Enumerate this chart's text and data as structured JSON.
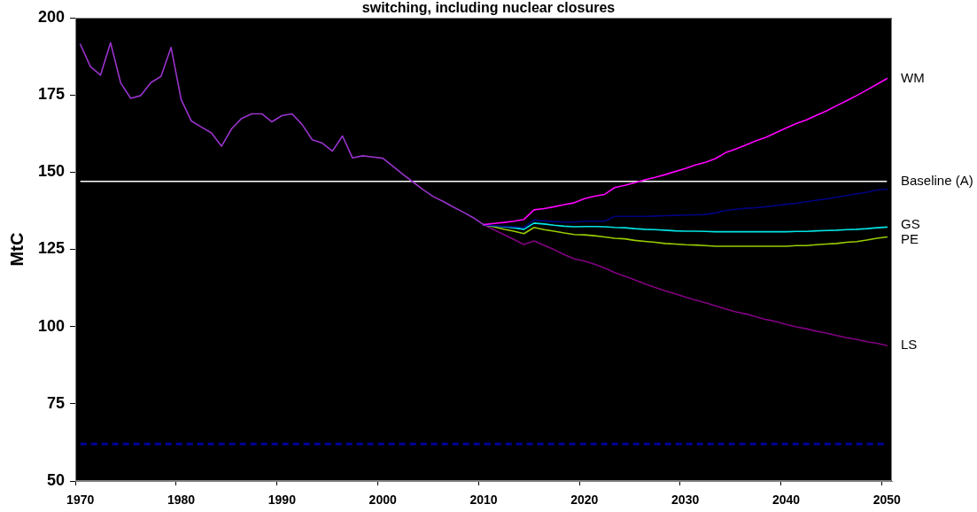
{
  "chart_data": {
    "type": "line",
    "title": "switching, including nuclear closures",
    "ylabel": "MtC",
    "categories": [
      "1970",
      null,
      null,
      null,
      null,
      null,
      null,
      null,
      null,
      null,
      "1980",
      null,
      null,
      null,
      null,
      null,
      null,
      null,
      null,
      null,
      "1990",
      null,
      null,
      null,
      null,
      null,
      null,
      null,
      null,
      null,
      "2000",
      null,
      null,
      null,
      null,
      null,
      null,
      null,
      null,
      null,
      "2010",
      null,
      null,
      null,
      null,
      null,
      null,
      null,
      null,
      null,
      "2020",
      null,
      null,
      null,
      null,
      null,
      null,
      null,
      null,
      null,
      "2030",
      null,
      null,
      null,
      null,
      null,
      null,
      null,
      null,
      null,
      "2040",
      null,
      null,
      null,
      null,
      null,
      null,
      null,
      null,
      null,
      "2050"
    ],
    "ylim": [
      50,
      200
    ],
    "yticks": [
      50,
      75,
      100,
      125,
      150,
      175,
      200
    ],
    "grid": false,
    "legend": false,
    "marker": "none",
    "series": [
      {
        "color": "#9933cc",
        "values": [
          191.4,
          184.2,
          181.4,
          191.9,
          178.9,
          173.9,
          174.8,
          179.0,
          181.0,
          190.4,
          173.5,
          166.6,
          164.6,
          162.7,
          158.4,
          164.0,
          167.4,
          168.9,
          168.9,
          166.3,
          168.3,
          168.9,
          165.4,
          160.5,
          159.4,
          156.8,
          161.7,
          154.6,
          155.3,
          154.9,
          154.5,
          151.9,
          149.3,
          146.8,
          144.3,
          142.1,
          140.5,
          138.7,
          137.0,
          135.2,
          133.0,
          null,
          null,
          null,
          null,
          null,
          null,
          null,
          null,
          null,
          null,
          null,
          null,
          null,
          null,
          null,
          null,
          null,
          null,
          null,
          null,
          null,
          null,
          null,
          null,
          null,
          null,
          null,
          null,
          null,
          null,
          null,
          null,
          null,
          null,
          null,
          null,
          null,
          null,
          null,
          null
        ]
      },
      {
        "name": "WM",
        "color": "#ff00ff",
        "values": [
          null,
          null,
          null,
          null,
          null,
          null,
          null,
          null,
          null,
          null,
          null,
          null,
          null,
          null,
          null,
          null,
          null,
          null,
          null,
          null,
          null,
          null,
          null,
          null,
          null,
          null,
          null,
          null,
          null,
          null,
          null,
          null,
          null,
          null,
          null,
          null,
          null,
          null,
          null,
          null,
          133.0,
          133.4,
          133.7,
          134.1,
          134.7,
          137.8,
          138.2,
          138.8,
          139.5,
          140.1,
          141.4,
          142.2,
          142.8,
          145.0,
          145.7,
          146.6,
          147.5,
          148.3,
          149.2,
          150.2,
          151.2,
          152.3,
          153.2,
          154.4,
          156.3,
          157.5,
          158.8,
          160.1,
          161.3,
          162.8,
          164.3,
          165.7,
          166.9,
          168.4,
          169.8,
          171.5,
          173.1,
          174.8,
          176.6,
          178.4,
          180.3
        ]
      },
      {
        "color": "#000080",
        "values": [
          null,
          null,
          null,
          null,
          null,
          null,
          null,
          null,
          null,
          null,
          null,
          null,
          null,
          null,
          null,
          null,
          null,
          null,
          null,
          null,
          null,
          null,
          null,
          null,
          null,
          null,
          null,
          null,
          null,
          null,
          null,
          null,
          null,
          null,
          null,
          null,
          null,
          null,
          null,
          null,
          133.0,
          132.7,
          132.5,
          132.3,
          132.1,
          134.5,
          134.2,
          134.0,
          133.8,
          133.8,
          134.1,
          134.1,
          134.1,
          135.7,
          135.7,
          135.7,
          135.7,
          135.8,
          135.9,
          136.0,
          136.1,
          136.2,
          136.3,
          136.8,
          137.6,
          138.0,
          138.3,
          138.5,
          138.8,
          139.2,
          139.6,
          139.9,
          140.4,
          140.9,
          141.3,
          141.9,
          142.4,
          143.0,
          143.5,
          144.2,
          144.5
        ]
      },
      {
        "name": "GS",
        "color": "#00e5e5",
        "values": [
          null,
          null,
          null,
          null,
          null,
          null,
          null,
          null,
          null,
          null,
          null,
          null,
          null,
          null,
          null,
          null,
          null,
          null,
          null,
          null,
          null,
          null,
          null,
          null,
          null,
          null,
          null,
          null,
          null,
          null,
          null,
          null,
          null,
          null,
          null,
          null,
          null,
          null,
          null,
          null,
          133.0,
          132.6,
          132.3,
          132.0,
          131.5,
          133.5,
          133.2,
          132.8,
          132.5,
          132.3,
          132.4,
          132.4,
          132.3,
          132.1,
          132.0,
          131.7,
          131.5,
          131.4,
          131.2,
          131.0,
          130.9,
          130.9,
          130.8,
          130.7,
          130.7,
          130.7,
          130.7,
          130.7,
          130.7,
          130.7,
          130.7,
          130.8,
          130.8,
          131.0,
          131.1,
          131.2,
          131.4,
          131.5,
          131.7,
          132.0,
          132.2
        ]
      },
      {
        "name": "PE",
        "color": "#99cc00",
        "values": [
          null,
          null,
          null,
          null,
          null,
          null,
          null,
          null,
          null,
          null,
          null,
          null,
          null,
          null,
          null,
          null,
          null,
          null,
          null,
          null,
          null,
          null,
          null,
          null,
          null,
          null,
          null,
          null,
          null,
          null,
          null,
          null,
          null,
          null,
          null,
          null,
          null,
          null,
          null,
          null,
          133.0,
          132.3,
          131.5,
          130.9,
          130.1,
          132.1,
          131.4,
          130.9,
          130.3,
          129.8,
          129.7,
          129.4,
          129.0,
          128.6,
          128.4,
          127.9,
          127.6,
          127.3,
          126.9,
          126.7,
          126.5,
          126.4,
          126.2,
          126.0,
          126.0,
          126.0,
          126.0,
          126.0,
          126.0,
          126.0,
          126.0,
          126.2,
          126.2,
          126.5,
          126.7,
          126.9,
          127.3,
          127.5,
          128.0,
          128.6,
          129.0
        ]
      },
      {
        "name": "LS",
        "color": "#800080",
        "values": [
          null,
          null,
          null,
          null,
          null,
          null,
          null,
          null,
          null,
          null,
          null,
          null,
          null,
          null,
          null,
          null,
          null,
          null,
          null,
          null,
          null,
          null,
          null,
          null,
          null,
          null,
          null,
          null,
          null,
          null,
          null,
          null,
          null,
          null,
          null,
          null,
          null,
          null,
          null,
          null,
          133.0,
          131.4,
          129.8,
          128.2,
          126.6,
          127.7,
          126.3,
          124.9,
          123.3,
          121.9,
          121.2,
          120.2,
          119.0,
          117.5,
          116.3,
          115.1,
          113.8,
          112.7,
          111.6,
          110.6,
          109.6,
          108.6,
          107.7,
          106.7,
          105.7,
          104.8,
          104.1,
          103.2,
          102.3,
          101.6,
          100.7,
          99.9,
          99.3,
          98.5,
          97.9,
          97.1,
          96.4,
          95.8,
          95.1,
          94.6,
          93.9
        ]
      }
    ],
    "ref_lines": [
      {
        "axis": "y",
        "value": 147,
        "label": "Baseline (A)",
        "color": "#ffffff",
        "line_style": "solid"
      },
      {
        "axis": "y",
        "value": 62,
        "color": "#000099",
        "line_style": "dashed"
      }
    ]
  }
}
